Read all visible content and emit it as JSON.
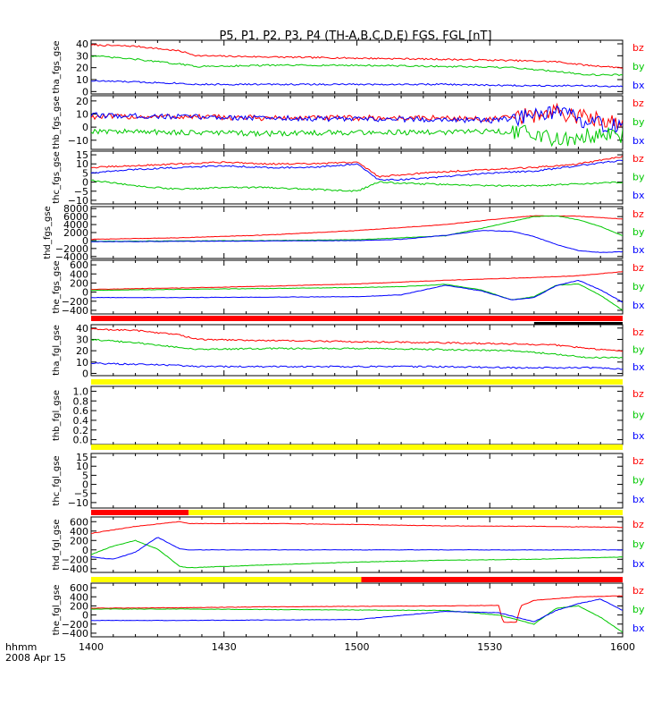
{
  "chart_data": {
    "type": "line",
    "title": "P5, P1, P2, P3, P4 (TH-A,B,C,D,E) FGS, FGL [nT]",
    "x_axis": {
      "tick_labels": [
        "1400",
        "1430",
        "1500",
        "1530",
        "1600"
      ],
      "range_minutes": [
        0,
        120
      ],
      "corner_label_1": "hhmm",
      "corner_label_2": "2008 Apr 15"
    },
    "colors": {
      "bx": "#0000ff",
      "by": "#00c800",
      "bz": "#ff0000",
      "flag_red": "#ff0000",
      "flag_yellow": "#ffff00",
      "flag_black": "#000000"
    },
    "legend_labels": [
      "bz",
      "by",
      "bx"
    ],
    "panels": [
      {
        "ylabel": "tha_fgs_gse",
        "ylim": [
          -2,
          43
        ],
        "yticks": [
          "40",
          "30",
          "20",
          "10",
          "0"
        ],
        "yticks_values": [
          40,
          30,
          20,
          10,
          0
        ],
        "series": [
          {
            "name": "bz",
            "x": [
              0,
              10,
              20,
              24,
              40,
              60,
              80,
              95,
              105,
              112,
              120
            ],
            "y": [
              39,
              38,
              34,
              30,
              29,
              28,
              27,
              26,
              25,
              22,
              20
            ]
          },
          {
            "name": "by",
            "x": [
              0,
              10,
              20,
              24,
              40,
              60,
              80,
              95,
              105,
              112,
              120
            ],
            "y": [
              30,
              27,
              23,
              21,
              22,
              22,
              21,
              20,
              17,
              14,
              14
            ]
          },
          {
            "name": "bx",
            "x": [
              0,
              10,
              20,
              24,
              40,
              60,
              80,
              95,
              105,
              112,
              120
            ],
            "y": [
              9,
              8,
              7,
              6,
              6,
              6,
              6,
              5,
              5,
              5,
              4
            ]
          }
        ]
      },
      {
        "ylabel": "thb_fgs_gse",
        "ylim": [
          -17,
          24
        ],
        "yticks": [
          "20",
          "10",
          "0",
          "−10"
        ],
        "yticks_values": [
          20,
          10,
          0,
          -10
        ],
        "series": [
          {
            "name": "bz",
            "x": [
              0,
              20,
              40,
              60,
              80,
              90,
              100,
              105,
              110,
              115,
              120
            ],
            "y": [
              8,
              8,
              7,
              7,
              7,
              6,
              9,
              12,
              8,
              6,
              4
            ]
          },
          {
            "name": "bx",
            "x": [
              0,
              20,
              40,
              60,
              80,
              90,
              100,
              105,
              110,
              115,
              120
            ],
            "y": [
              9,
              8,
              7,
              6,
              6,
              5,
              8,
              11,
              6,
              2,
              0
            ]
          },
          {
            "name": "by",
            "x": [
              0,
              20,
              40,
              60,
              80,
              90,
              100,
              105,
              110,
              115,
              120
            ],
            "y": [
              -3,
              -4,
              -5,
              -4,
              -4,
              -3,
              -5,
              -9,
              -8,
              -5,
              -6
            ]
          }
        ]
      },
      {
        "ylabel": "thc_fgs_gse",
        "ylim": [
          -12,
          17
        ],
        "yticks": [
          "15",
          "10",
          "5",
          "0",
          "−5",
          "−10"
        ],
        "yticks_values": [
          15,
          10,
          5,
          0,
          -5,
          -10
        ],
        "series": [
          {
            "name": "bz",
            "x": [
              0,
              10,
              20,
              30,
              40,
              50,
              60,
              65,
              75,
              90,
              100,
              110,
              120
            ],
            "y": [
              8,
              9,
              10,
              11,
              10,
              10,
              11,
              3,
              5,
              7,
              8,
              10,
              14
            ]
          },
          {
            "name": "bx",
            "x": [
              0,
              10,
              20,
              30,
              40,
              50,
              60,
              65,
              75,
              90,
              100,
              110,
              120
            ],
            "y": [
              5,
              7,
              8,
              9,
              8,
              8,
              10,
              1,
              2,
              5,
              6,
              9,
              12
            ]
          },
          {
            "name": "by",
            "x": [
              0,
              10,
              20,
              30,
              40,
              50,
              60,
              65,
              75,
              90,
              100,
              110,
              120
            ],
            "y": [
              1,
              -2,
              -4,
              -3,
              -3,
              -4,
              -5,
              0,
              -1,
              -2,
              -2,
              -1,
              0
            ]
          }
        ]
      },
      {
        "ylabel": "thd_fgs_gse",
        "ylim": [
          -4500,
          8500
        ],
        "yticks": [
          "8000",
          "6000",
          "4000",
          "2000",
          "0",
          "−2000",
          "−4000"
        ],
        "yticks_values": [
          8000,
          6000,
          4000,
          2000,
          0,
          -2000,
          -4000
        ],
        "series": [
          {
            "name": "bz",
            "x": [
              0,
              20,
              40,
              60,
              80,
              90,
              100,
              110,
              120
            ],
            "y": [
              300,
              700,
              1400,
              2500,
              4000,
              5200,
              6200,
              6100,
              5400
            ]
          },
          {
            "name": "by",
            "x": [
              0,
              20,
              40,
              60,
              80,
              90,
              100,
              105,
              110,
              115,
              120
            ],
            "y": [
              -200,
              -100,
              0,
              200,
              1200,
              3500,
              6000,
              6200,
              5200,
              3500,
              1200
            ]
          },
          {
            "name": "bx",
            "x": [
              0,
              20,
              40,
              60,
              70,
              80,
              88,
              95,
              100,
              105,
              110,
              115,
              120
            ],
            "y": [
              -300,
              -200,
              -100,
              0,
              300,
              1300,
              2500,
              2300,
              1000,
              -1000,
              -2500,
              -3000,
              -2800
            ]
          }
        ]
      },
      {
        "ylabel": "the_fgs_gse",
        "ylim": [
          -480,
          700
        ],
        "yticks": [
          "600",
          "400",
          "200",
          "0",
          "−200",
          "−400"
        ],
        "yticks_values": [
          600,
          400,
          200,
          0,
          -200,
          -400
        ],
        "series": [
          {
            "name": "bz",
            "x": [
              0,
              20,
              40,
              60,
              80,
              100,
              110,
              120
            ],
            "y": [
              60,
              90,
              130,
              180,
              260,
              320,
              360,
              450
            ]
          },
          {
            "name": "by",
            "x": [
              0,
              20,
              40,
              60,
              70,
              80,
              88,
              95,
              100,
              105,
              110,
              115,
              120
            ],
            "y": [
              40,
              60,
              80,
              100,
              120,
              170,
              50,
              -170,
              -100,
              150,
              180,
              -70,
              -400
            ]
          },
          {
            "name": "bx",
            "x": [
              0,
              20,
              40,
              60,
              70,
              80,
              88,
              95,
              100,
              105,
              110,
              115,
              120
            ],
            "y": [
              -120,
              -120,
              -110,
              -100,
              -60,
              150,
              30,
              -170,
              -120,
              140,
              260,
              50,
              -220
            ]
          }
        ]
      },
      {
        "ylabel": "tha_fgl_gse",
        "ylim": [
          -2,
          43
        ],
        "yticks": [
          "40",
          "30",
          "20",
          "10",
          "0"
        ],
        "yticks_values": [
          40,
          30,
          20,
          10,
          0
        ],
        "series": [
          {
            "name": "bz",
            "x": [
              0,
              10,
              20,
              24,
              40,
              60,
              80,
              95,
              105,
              112,
              120
            ],
            "y": [
              39,
              38,
              34,
              30,
              29,
              28,
              27,
              26,
              25,
              22,
              20
            ]
          },
          {
            "name": "by",
            "x": [
              0,
              10,
              20,
              24,
              40,
              60,
              80,
              95,
              105,
              112,
              120
            ],
            "y": [
              30,
              27,
              23,
              21,
              22,
              22,
              21,
              20,
              17,
              14,
              14
            ]
          },
          {
            "name": "bx",
            "x": [
              0,
              10,
              20,
              24,
              40,
              60,
              80,
              95,
              105,
              112,
              120
            ],
            "y": [
              9,
              8,
              7,
              6,
              6,
              6,
              6,
              5,
              5,
              5,
              4
            ]
          }
        ]
      },
      {
        "ylabel": "thb_fgl_gse",
        "ylim": [
          -0.1,
          1.1
        ],
        "yticks": [
          "1.0",
          "0.8",
          "0.6",
          "0.4",
          "0.2",
          "0.0"
        ],
        "yticks_values": [
          1.0,
          0.8,
          0.6,
          0.4,
          0.2,
          0.0
        ],
        "series": []
      },
      {
        "ylabel": "thc_fgl_gse",
        "ylim": [
          -13,
          17
        ],
        "yticks": [
          "15",
          "10",
          "5",
          "0",
          "−5",
          "−10"
        ],
        "yticks_values": [
          15,
          10,
          5,
          0,
          -5,
          -10
        ],
        "series": []
      },
      {
        "ylabel": "thd_fgl_gse",
        "ylim": [
          -480,
          700
        ],
        "yticks": [
          "600",
          "400",
          "200",
          "0",
          "−200",
          "−400"
        ],
        "yticks_values": [
          600,
          400,
          200,
          0,
          -200,
          -400
        ],
        "series": [
          {
            "name": "bz",
            "x": [
              0,
              10,
              20,
              22,
              40,
              60,
              80,
              100,
              120
            ],
            "y": [
              350,
              500,
              600,
              560,
              560,
              540,
              510,
              500,
              480
            ]
          },
          {
            "name": "by",
            "x": [
              0,
              5,
              10,
              15,
              20,
              22,
              40,
              60,
              80,
              100,
              120
            ],
            "y": [
              -100,
              80,
              200,
              20,
              -350,
              -380,
              -320,
              -260,
              -220,
              -200,
              -150
            ]
          },
          {
            "name": "bx",
            "x": [
              0,
              5,
              10,
              15,
              20,
              22,
              40,
              60,
              80,
              100,
              120
            ],
            "y": [
              -150,
              -200,
              -50,
              270,
              20,
              0,
              0,
              0,
              0,
              0,
              0
            ]
          }
        ]
      },
      {
        "ylabel": "the_fgl_gse",
        "ylim": [
          -480,
          700
        ],
        "yticks": [
          "600",
          "400",
          "200",
          "0",
          "−200",
          "−400"
        ],
        "yticks_values": [
          600,
          400,
          200,
          0,
          -200,
          -400
        ],
        "series": [
          {
            "name": "bz",
            "x": [
              0,
              20,
              40,
              60,
              80,
              92,
              93,
              96,
              97,
              100,
              110,
              120
            ],
            "y": [
              150,
              160,
              180,
              190,
              200,
              210,
              -160,
              -160,
              200,
              320,
              400,
              420
            ]
          },
          {
            "name": "by",
            "x": [
              0,
              20,
              40,
              60,
              80,
              92,
              100,
              105,
              110,
              115,
              120
            ],
            "y": [
              130,
              130,
              120,
              110,
              100,
              0,
              -200,
              150,
              200,
              -50,
              -380
            ]
          },
          {
            "name": "bx",
            "x": [
              0,
              20,
              40,
              60,
              80,
              92,
              100,
              105,
              110,
              115,
              120
            ],
            "y": [
              -120,
              -120,
              -110,
              -100,
              80,
              50,
              -150,
              100,
              250,
              350,
              100
            ]
          }
        ]
      }
    ],
    "flag_bars": [
      {
        "segments": [
          {
            "from": 0,
            "to": 120,
            "color": "flag_red"
          }
        ]
      },
      {
        "segments": [
          {
            "from": 100,
            "to": 120,
            "color": "flag_black"
          }
        ]
      },
      {
        "segments": [
          {
            "from": 0,
            "to": 120,
            "color": "flag_yellow"
          }
        ]
      },
      {
        "segments": [
          {
            "from": 0,
            "to": 120,
            "color": "flag_yellow"
          }
        ]
      },
      {
        "segments": [
          {
            "from": 0,
            "to": 22,
            "color": "flag_red"
          },
          {
            "from": 22,
            "to": 120,
            "color": "flag_yellow"
          }
        ]
      },
      {
        "segments": [
          {
            "from": 0,
            "to": 61,
            "color": "flag_yellow"
          },
          {
            "from": 61,
            "to": 120,
            "color": "flag_red"
          }
        ]
      }
    ]
  }
}
